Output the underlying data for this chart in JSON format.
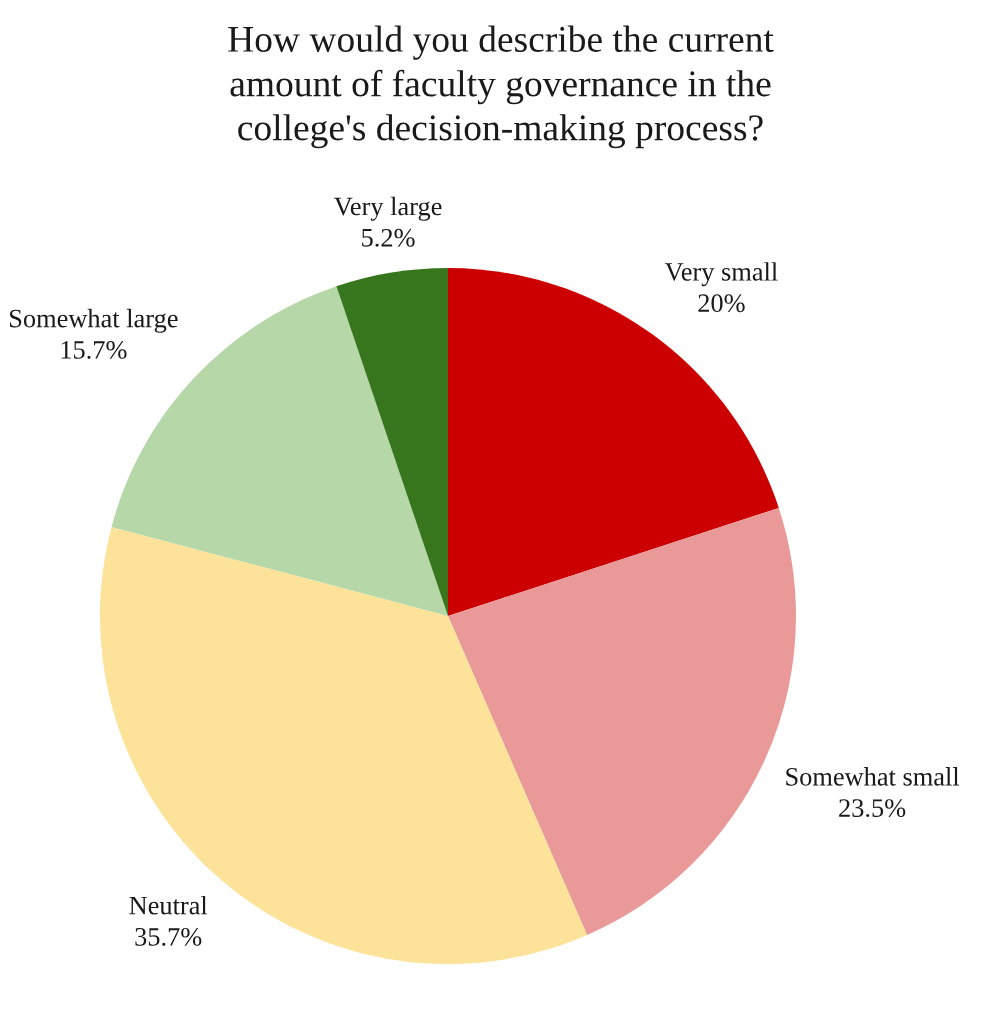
{
  "chart_data": {
    "type": "pie",
    "title": "How would you describe the current\namount of faculty governance in the\ncollege's decision-making process?",
    "categories": [
      "Very small",
      "Somewhat small",
      "Neutral",
      "Somewhat large",
      "Very large"
    ],
    "values": [
      20,
      23.5,
      35.7,
      15.7,
      5.2
    ],
    "colors": [
      "#cc0000",
      "#ea9999",
      "#fce399",
      "#b6d7a8",
      "#38761d"
    ],
    "value_labels": [
      "20%",
      "23.5%",
      "35.7%",
      "15.7%",
      "5.2%"
    ]
  }
}
